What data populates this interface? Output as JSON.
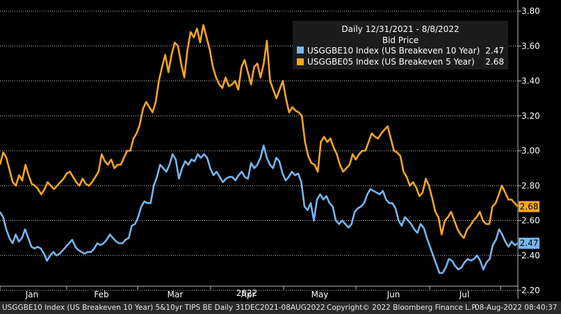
{
  "chart_data": {
    "type": "line",
    "title": "Daily 12/31/2021 - 8/8/2022",
    "subtitle": "Bid Price",
    "year_label": "2022",
    "ylim": [
      2.15,
      3.85
    ],
    "y_ticks": [
      "2.20",
      "2.40",
      "2.60",
      "2.80",
      "3.00",
      "3.20",
      "3.40",
      "3.60",
      "3.80"
    ],
    "x_ticks": [
      "Jan",
      "Feb",
      "Mar",
      "Apr",
      "May",
      "Jun",
      "Jul"
    ],
    "grid": "horizontal-dotted",
    "legend_position": "top-right",
    "series": [
      {
        "name": "USGGBE10 Index  (US Breakeven 10 Year)",
        "last": "2.47",
        "color": "#76b6f0",
        "values": [
          2.65,
          2.62,
          2.55,
          2.5,
          2.47,
          2.52,
          2.48,
          2.5,
          2.55,
          2.5,
          2.45,
          2.44,
          2.45,
          2.44,
          2.41,
          2.37,
          2.4,
          2.42,
          2.4,
          2.41,
          2.43,
          2.45,
          2.47,
          2.49,
          2.45,
          2.43,
          2.42,
          2.41,
          2.42,
          2.42,
          2.44,
          2.47,
          2.46,
          2.47,
          2.49,
          2.52,
          2.5,
          2.48,
          2.47,
          2.47,
          2.49,
          2.5,
          2.57,
          2.58,
          2.62,
          2.68,
          2.71,
          2.7,
          2.7,
          2.8,
          2.85,
          2.92,
          2.9,
          2.88,
          2.92,
          2.98,
          2.95,
          2.84,
          2.9,
          2.94,
          2.92,
          2.95,
          2.94,
          2.98,
          2.96,
          2.98,
          2.96,
          2.9,
          2.86,
          2.88,
          2.85,
          2.82,
          2.84,
          2.85,
          2.85,
          2.83,
          2.86,
          2.88,
          2.85,
          2.84,
          2.93,
          2.9,
          2.92,
          2.96,
          3.03,
          2.96,
          2.92,
          2.9,
          2.96,
          2.94,
          2.87,
          2.83,
          2.85,
          2.88,
          2.86,
          2.87,
          2.82,
          2.68,
          2.66,
          2.7,
          2.6,
          2.72,
          2.75,
          2.72,
          2.74,
          2.7,
          2.68,
          2.6,
          2.58,
          2.6,
          2.58,
          2.56,
          2.58,
          2.65,
          2.67,
          2.68,
          2.7,
          2.75,
          2.78,
          2.77,
          2.76,
          2.75,
          2.77,
          2.72,
          2.7,
          2.7,
          2.67,
          2.6,
          2.57,
          2.62,
          2.6,
          2.58,
          2.55,
          2.53,
          2.58,
          2.56,
          2.5,
          2.45,
          2.4,
          2.35,
          2.3,
          2.3,
          2.33,
          2.38,
          2.37,
          2.34,
          2.32,
          2.33,
          2.36,
          2.38,
          2.37,
          2.38,
          2.4,
          2.37,
          2.32,
          2.36,
          2.38,
          2.46,
          2.49,
          2.55,
          2.52,
          2.48,
          2.45,
          2.48,
          2.46,
          2.47
        ]
      },
      {
        "name": "USGGBE05 Index  (US Breakeven 5 Year)",
        "last": "2.68",
        "color": "#f5a623",
        "values": [
          2.92,
          2.99,
          2.96,
          2.89,
          2.82,
          2.8,
          2.86,
          2.83,
          2.92,
          2.86,
          2.81,
          2.8,
          2.78,
          2.75,
          2.78,
          2.82,
          2.8,
          2.78,
          2.8,
          2.82,
          2.84,
          2.87,
          2.88,
          2.85,
          2.82,
          2.8,
          2.84,
          2.81,
          2.8,
          2.82,
          2.85,
          2.88,
          2.98,
          2.94,
          2.92,
          2.95,
          2.9,
          2.92,
          2.92,
          2.96,
          3.0,
          3.0,
          3.07,
          3.1,
          3.15,
          3.24,
          3.28,
          3.25,
          3.22,
          3.28,
          3.4,
          3.48,
          3.55,
          3.45,
          3.55,
          3.62,
          3.6,
          3.5,
          3.42,
          3.58,
          3.68,
          3.65,
          3.7,
          3.62,
          3.72,
          3.65,
          3.58,
          3.48,
          3.42,
          3.38,
          3.36,
          3.42,
          3.37,
          3.38,
          3.4,
          3.35,
          3.48,
          3.52,
          3.45,
          3.38,
          3.48,
          3.5,
          3.42,
          3.5,
          3.63,
          3.4,
          3.35,
          3.3,
          3.35,
          3.4,
          3.3,
          3.22,
          3.25,
          3.23,
          3.22,
          3.2,
          3.05,
          2.97,
          2.93,
          2.92,
          2.88,
          3.05,
          3.08,
          3.05,
          3.07,
          3.02,
          2.98,
          2.92,
          2.88,
          2.9,
          2.92,
          2.98,
          2.95,
          2.98,
          3.0,
          3.0,
          3.05,
          3.1,
          3.08,
          3.07,
          3.1,
          3.12,
          3.14,
          3.07,
          3.0,
          2.99,
          2.97,
          2.88,
          2.85,
          2.8,
          2.82,
          2.79,
          2.74,
          2.76,
          2.84,
          2.8,
          2.73,
          2.65,
          2.62,
          2.52,
          2.6,
          2.62,
          2.65,
          2.6,
          2.55,
          2.52,
          2.5,
          2.55,
          2.57,
          2.6,
          2.62,
          2.65,
          2.6,
          2.58,
          2.58,
          2.68,
          2.7,
          2.75,
          2.8,
          2.76,
          2.72,
          2.72,
          2.7,
          2.68
        ]
      }
    ]
  },
  "footer": {
    "security": "USGGBE10 Index (US Breakeven 10 Year) 5&10yr TIPS BE  Daily 31DEC2021-08AUG2022",
    "copyright": "Copyright© 2022 Bloomberg Finance L.P.",
    "timestamp": "08-Aug-2022 08:40:37"
  }
}
